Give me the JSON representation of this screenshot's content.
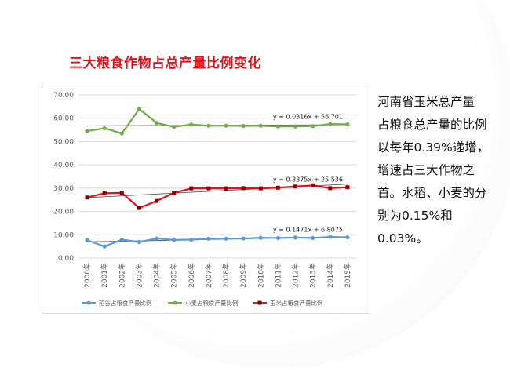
{
  "slide": {
    "title": "三大粮食作物占总产量比例变化",
    "side_text_lines": [
      "  河南省玉米总产量",
      "占粮食总产量的比例",
      "以每年0.39%递增，",
      "增速占三大作物之",
      "首。水稻、小麦的分",
      "别为0.15%和",
      "0.03%。"
    ]
  },
  "chart_data": {
    "type": "line",
    "categories": [
      "2000年",
      "2001年",
      "2002年",
      "2003年",
      "2004年",
      "2005年",
      "2006年",
      "2007年",
      "2008年",
      "2009年",
      "2010年",
      "2011年",
      "2012年",
      "2013年",
      "2014年",
      "2015年"
    ],
    "ylim": [
      0,
      70
    ],
    "yticks": [
      "0.00",
      "10.00",
      "20.00",
      "30.00",
      "40.00",
      "50.00",
      "60.00",
      "70.00"
    ],
    "grid": true,
    "legend_position": "bottom",
    "series": [
      {
        "name": "稻谷占粮食产量比例",
        "color": "#5b9bd5",
        "values": [
          7.7,
          5.0,
          7.9,
          6.9,
          8.4,
          7.8,
          7.9,
          8.3,
          8.3,
          8.4,
          8.7,
          8.6,
          8.8,
          8.6,
          9.1,
          8.9
        ],
        "trend": {
          "slope": 0.1471,
          "intercept": 6.8075,
          "equation": "y = 0.1471x + 6.8075"
        }
      },
      {
        "name": "小麦占粮食产量比例",
        "color": "#70ad47",
        "values": [
          54.5,
          55.7,
          53.5,
          64.0,
          58.0,
          56.3,
          57.3,
          56.8,
          56.8,
          56.7,
          56.8,
          56.5,
          56.5,
          56.6,
          57.5,
          57.4
        ],
        "trend": {
          "slope": 0.0316,
          "intercept": 56.701,
          "equation": "y = 0.0316x + 56.701"
        }
      },
      {
        "name": "玉米占粮食产量比例",
        "color": "#e0141e",
        "values": [
          26.0,
          27.8,
          28.0,
          21.5,
          24.5,
          28.0,
          29.9,
          29.9,
          29.9,
          30.0,
          29.9,
          30.2,
          30.7,
          31.2,
          30.0,
          30.4
        ],
        "trend": {
          "slope": 0.3875,
          "intercept": 25.536,
          "equation": "y = 0.3875x + 25.536"
        }
      }
    ]
  }
}
